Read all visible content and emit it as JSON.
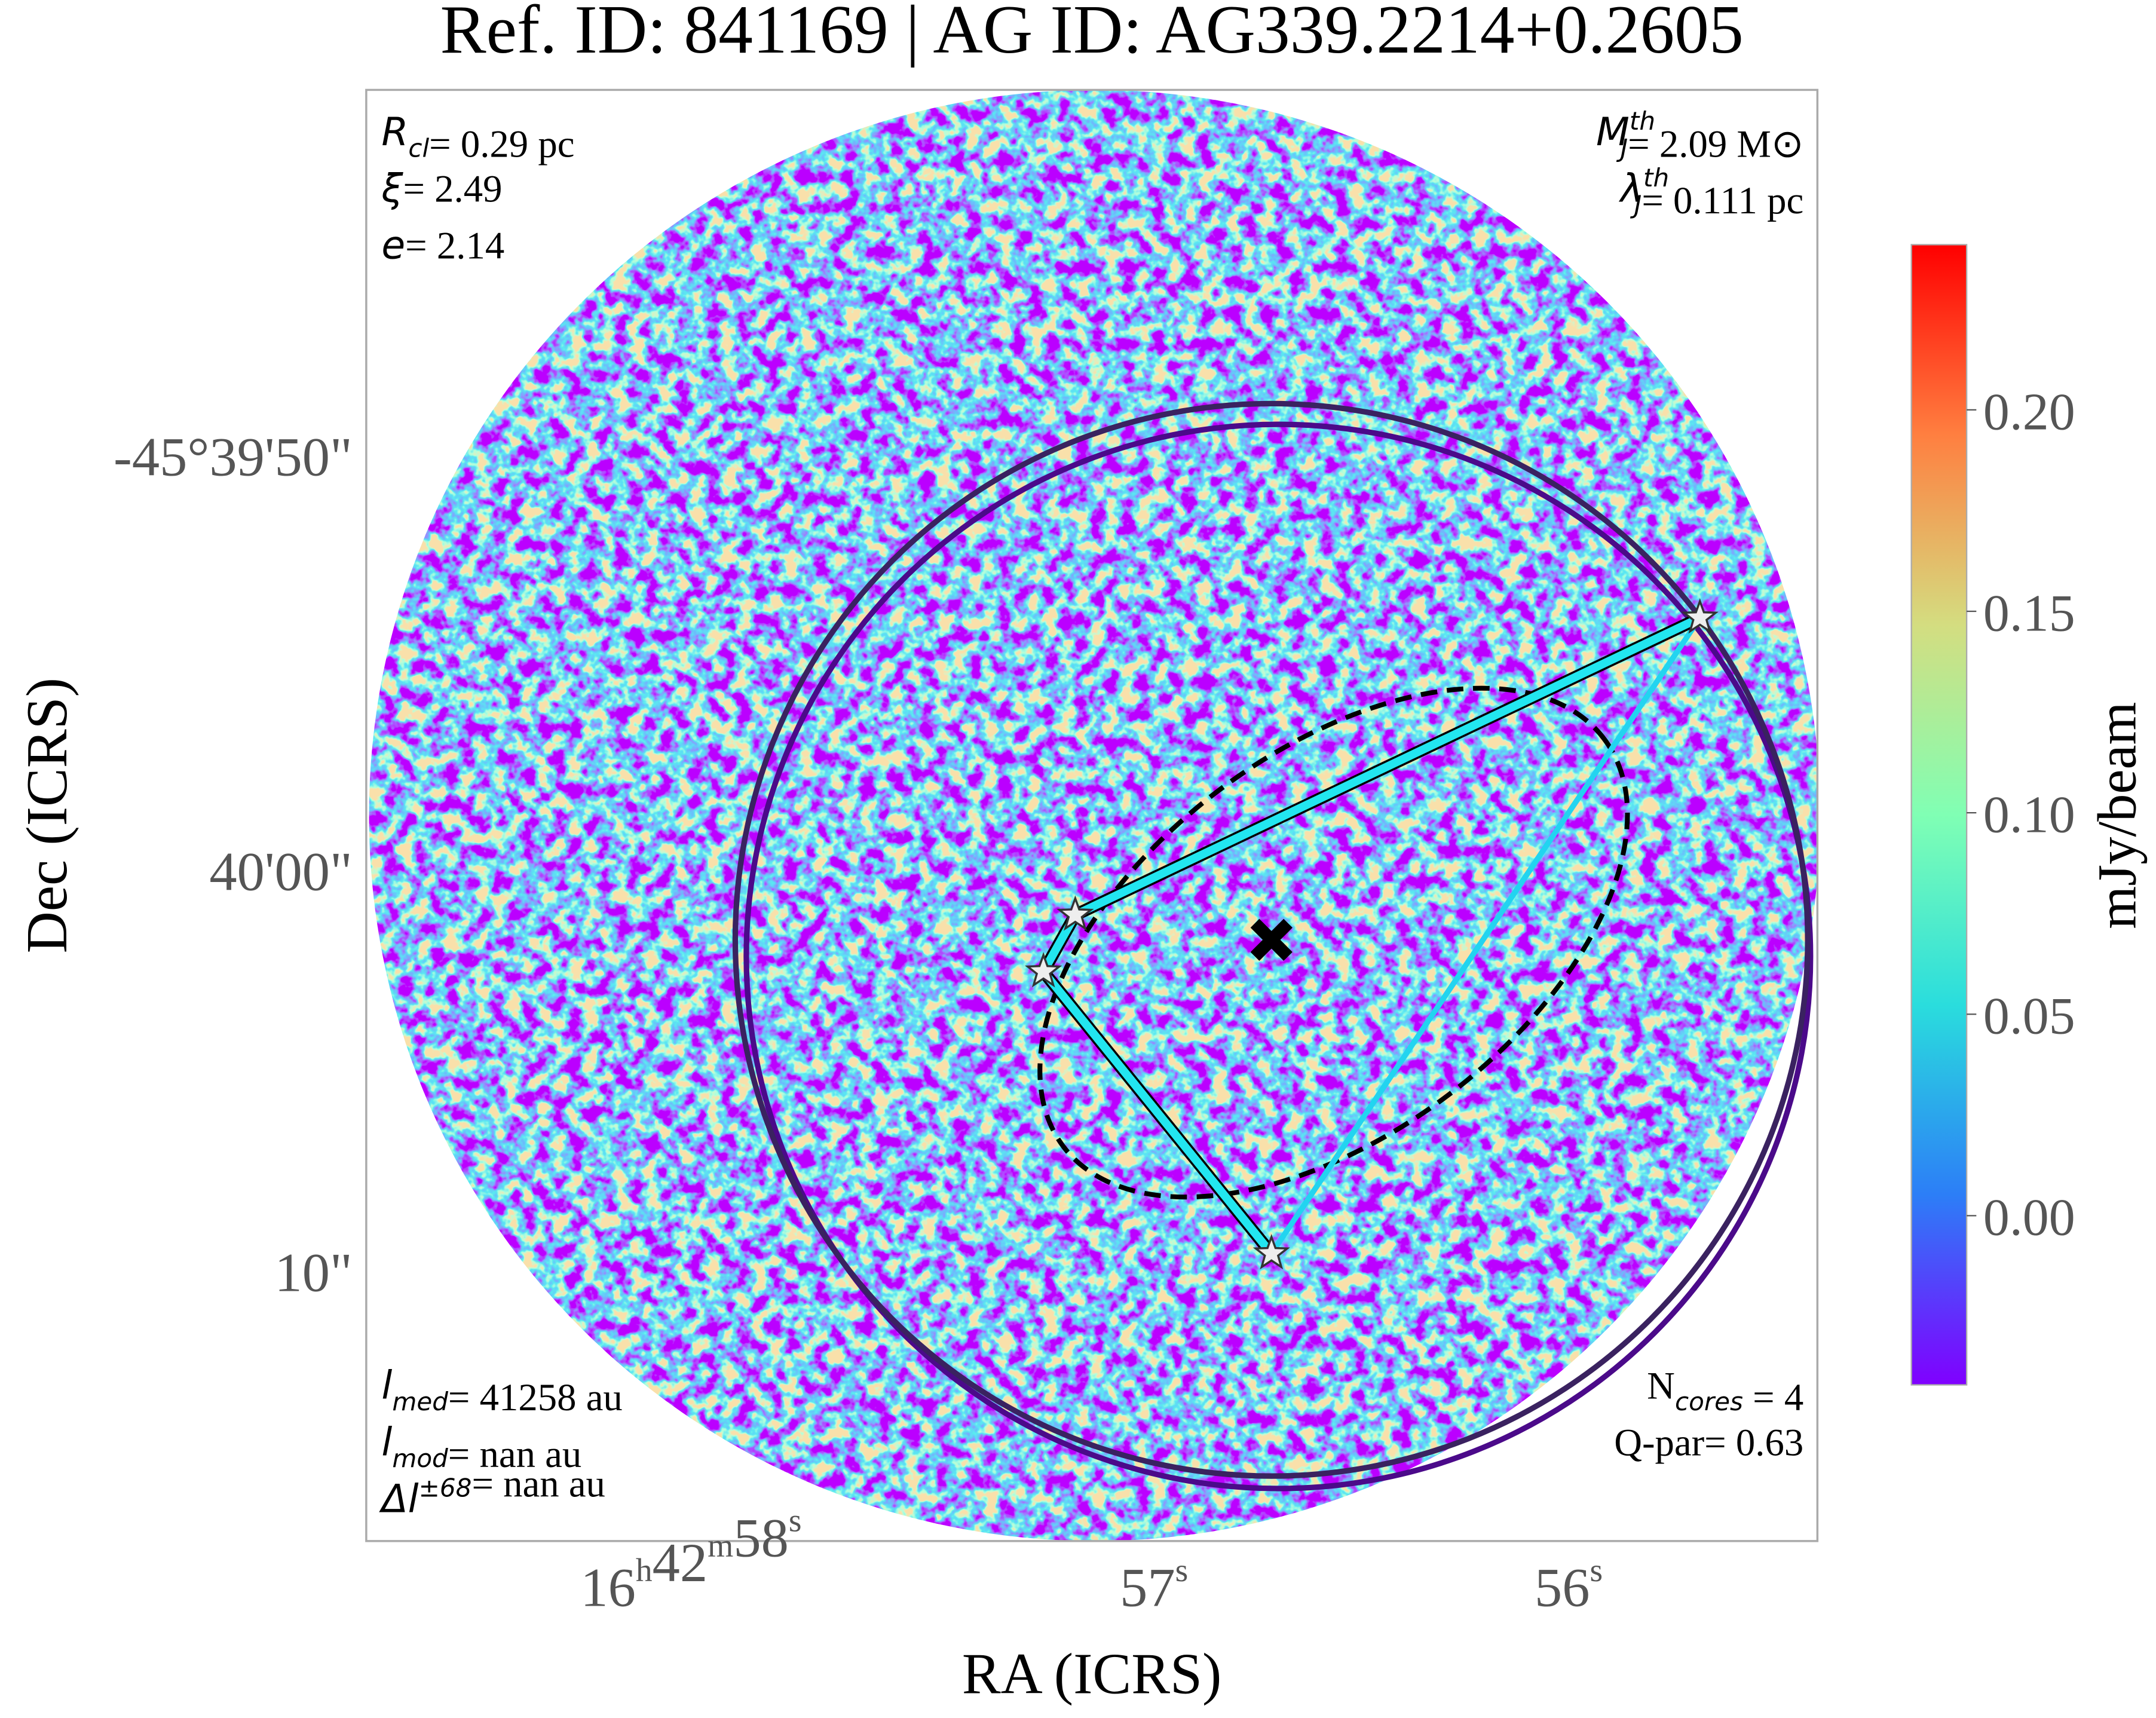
{
  "chart_data": {
    "type": "image",
    "title": "Ref. ID: 841169 | AG ID: AG339.2214+0.2605",
    "x_label": "RA (ICRS)",
    "y_label": "Dec (ICRS)",
    "xticks": [
      [
        {
          "text": "16"
        },
        {
          "sup": "h"
        },
        {
          "text": "42"
        },
        {
          "sup": "m"
        },
        {
          "text": "58"
        },
        {
          "sup": "s"
        }
      ],
      [
        {
          "text": "57"
        },
        {
          "sup": "s"
        }
      ],
      [
        {
          "text": "56"
        },
        {
          "sup": "s"
        }
      ]
    ],
    "yticks": [
      "-45°39'50\"",
      "40'00\"",
      "10\""
    ],
    "annotations_top_left": [
      [
        {
          "sym": "R",
          "sub": "cl"
        },
        {
          "text": "= 0.29 pc"
        }
      ],
      [
        {
          "sym": "ξ"
        },
        {
          "text": "= 2.49"
        }
      ],
      [
        {
          "sym": "e"
        },
        {
          "text": "= 2.14"
        }
      ]
    ],
    "annotations_top_right": [
      [
        {
          "sym": "M",
          "sub": "J",
          "sup": "th"
        },
        {
          "text": "= 2.09 M"
        },
        {
          "text": "⊙"
        }
      ],
      [
        {
          "sym": "λ",
          "sub": "J",
          "sup": "th"
        },
        {
          "text": "= 0.111 pc"
        }
      ]
    ],
    "annotations_bottom_left": [
      [
        {
          "sym": "l",
          "sub": "med"
        },
        {
          "text": "= 41258 au"
        }
      ],
      [
        {
          "sym": "l",
          "sub": "mod"
        },
        {
          "text": "= nan au"
        }
      ],
      [
        {
          "sym": "Δl",
          "sup": "±68"
        },
        {
          "text": "= nan au"
        }
      ]
    ],
    "annotations_bottom_right": [
      [
        {
          "text": "N"
        },
        {
          "sub": "cores"
        },
        {
          "text": " = 4"
        }
      ],
      [
        {
          "text": "Q-par= 0.63"
        }
      ]
    ],
    "colorbar": {
      "label": "mJy/beam",
      "ylim": [
        -0.042,
        0.241
      ],
      "yticks": [
        {
          "value": 0,
          "label": "0.00"
        },
        0.05,
        {
          "value": 0.1,
          "label": "0.10"
        },
        0.15,
        {
          "value": 0.2,
          "label": "0.20"
        }
      ],
      "colors": [
        "#8000ff",
        "#2c7ef7",
        "#2adddd",
        "#80ffb4",
        "#d4dd80",
        "#ff7f40",
        "#ff0000"
      ]
    }
  }
}
